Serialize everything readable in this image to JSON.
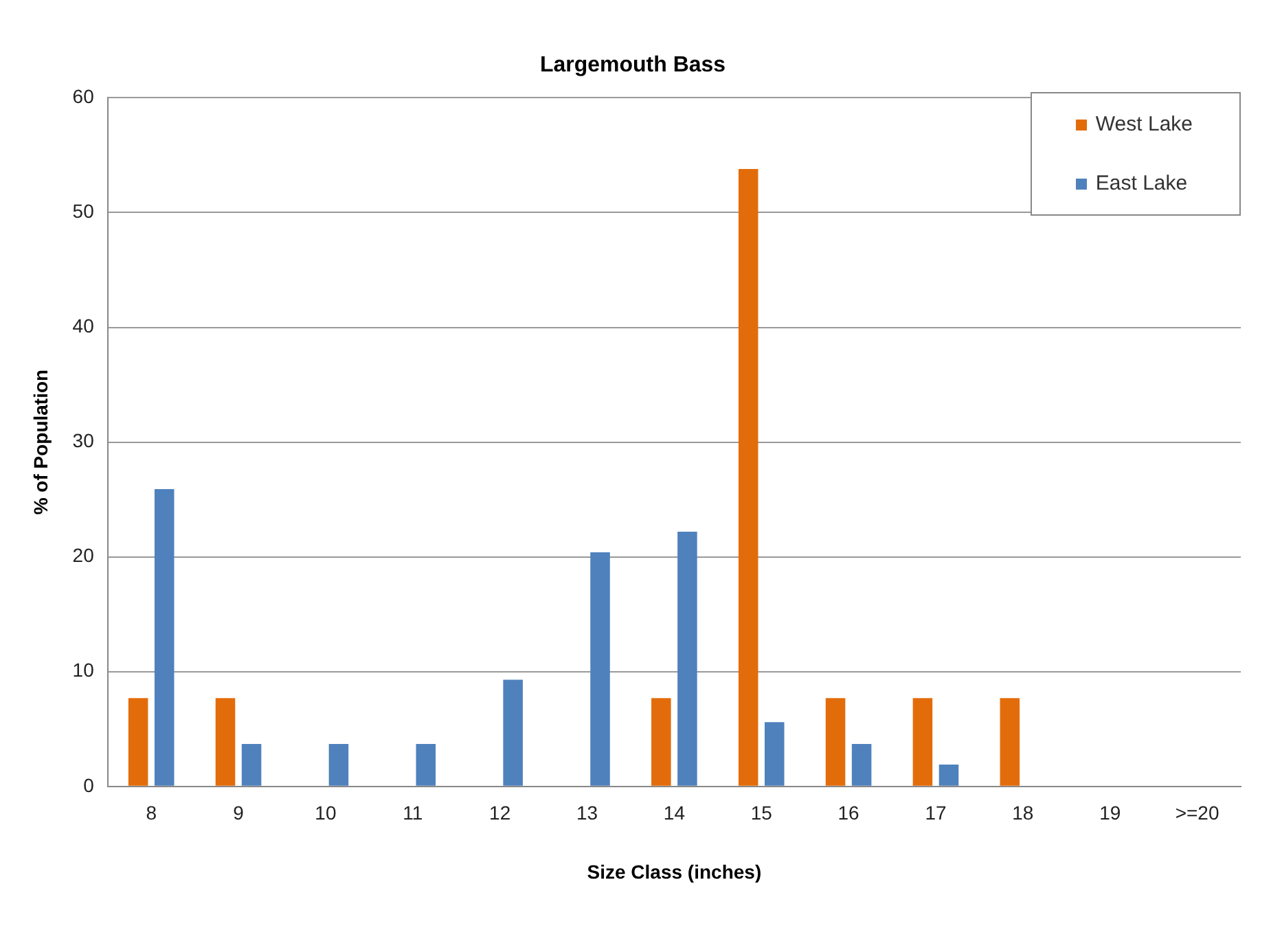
{
  "chart_data": {
    "type": "bar",
    "title": "Largemouth Bass",
    "xlabel": "Size Class (inches)",
    "ylabel": "% of Population",
    "categories": [
      "8",
      "9",
      "10",
      "11",
      "12",
      "13",
      "14",
      "15",
      "16",
      "17",
      "18",
      "19",
      ">=20"
    ],
    "series": [
      {
        "name": "West Lake",
        "color": "#e36c0a",
        "values": [
          7.7,
          7.7,
          0,
          0,
          0,
          0,
          7.7,
          53.8,
          7.7,
          7.7,
          7.7,
          0,
          0
        ]
      },
      {
        "name": "East Lake",
        "color": "#4f81bd",
        "values": [
          25.9,
          3.7,
          3.7,
          3.7,
          9.3,
          20.4,
          22.2,
          5.6,
          3.7,
          1.9,
          0,
          0,
          0
        ]
      }
    ],
    "ylim": [
      0,
      60
    ],
    "yticks": [
      0,
      10,
      20,
      30,
      40,
      50,
      60
    ],
    "grid": "y",
    "legend": "top right"
  }
}
